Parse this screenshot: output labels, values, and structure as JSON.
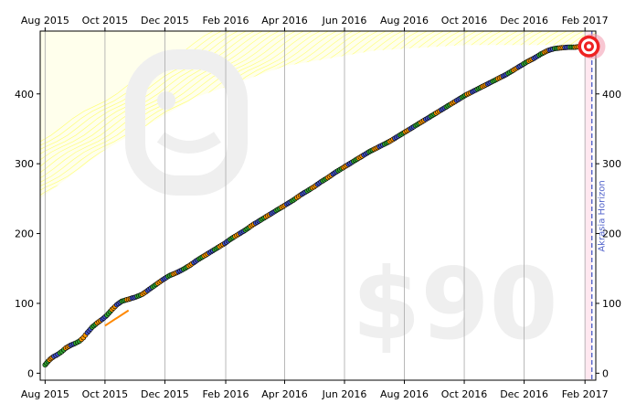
{
  "chart_data": {
    "type": "scatter",
    "title": "",
    "xlabel": "",
    "ylabel": "",
    "x_ticks": [
      "Aug 2015",
      "Oct 2015",
      "Dec 2015",
      "Feb 2016",
      "Apr 2016",
      "Jun 2016",
      "Aug 2016",
      "Oct 2016",
      "Dec 2016",
      "Feb 2017"
    ],
    "y_ticks": [
      0,
      100,
      200,
      300,
      400
    ],
    "ylim": [
      -10,
      490
    ],
    "xlim": [
      "2015-07-27",
      "2017-02-12"
    ],
    "grid": "vertical",
    "watermark": "$90",
    "horizon_label": "Akrasia Horizon",
    "horizon_date": "2017-02-08",
    "goal_date": "2017-02-05",
    "goal_value": 468,
    "road": [
      [
        "2015-07-27",
        250
      ],
      [
        "2015-10-01",
        320
      ],
      [
        "2016-01-01",
        395
      ],
      [
        "2016-04-01",
        440
      ],
      [
        "2016-07-01",
        462
      ],
      [
        "2016-10-01",
        470
      ],
      [
        "2017-02-12",
        470
      ]
    ],
    "orange_segment": [
      [
        "2015-10-01",
        68
      ],
      [
        "2015-10-25",
        90
      ]
    ],
    "datapoints": [
      [
        "2015-08-01",
        12
      ],
      [
        "2015-08-04",
        17
      ],
      [
        "2015-08-07",
        21
      ],
      [
        "2015-08-10",
        24
      ],
      [
        "2015-08-14",
        27
      ],
      [
        "2015-08-18",
        31
      ],
      [
        "2015-08-22",
        36
      ],
      [
        "2015-08-27",
        40
      ],
      [
        "2015-09-01",
        43
      ],
      [
        "2015-09-05",
        46
      ],
      [
        "2015-09-09",
        51
      ],
      [
        "2015-09-13",
        58
      ],
      [
        "2015-09-18",
        66
      ],
      [
        "2015-09-23",
        72
      ],
      [
        "2015-09-28",
        77
      ],
      [
        "2015-10-03",
        83
      ],
      [
        "2015-10-08",
        91
      ],
      [
        "2015-10-13",
        98
      ],
      [
        "2015-10-18",
        103
      ],
      [
        "2015-10-25",
        106
      ],
      [
        "2015-11-01",
        109
      ],
      [
        "2015-11-08",
        113
      ],
      [
        "2015-11-15",
        120
      ],
      [
        "2015-11-22",
        127
      ],
      [
        "2015-11-29",
        134
      ],
      [
        "2015-12-06",
        140
      ],
      [
        "2015-12-13",
        144
      ],
      [
        "2015-12-20",
        149
      ],
      [
        "2015-12-27",
        155
      ],
      [
        "2016-01-03",
        162
      ],
      [
        "2016-01-10",
        168
      ],
      [
        "2016-01-17",
        174
      ],
      [
        "2016-01-24",
        180
      ],
      [
        "2016-01-31",
        186
      ],
      [
        "2016-02-07",
        193
      ],
      [
        "2016-02-14",
        199
      ],
      [
        "2016-02-21",
        205
      ],
      [
        "2016-02-28",
        212
      ],
      [
        "2016-03-06",
        218
      ],
      [
        "2016-03-13",
        224
      ],
      [
        "2016-03-20",
        230
      ],
      [
        "2016-03-27",
        236
      ],
      [
        "2016-04-03",
        242
      ],
      [
        "2016-04-10",
        248
      ],
      [
        "2016-04-17",
        255
      ],
      [
        "2016-04-24",
        261
      ],
      [
        "2016-05-01",
        267
      ],
      [
        "2016-05-08",
        274
      ],
      [
        "2016-05-15",
        280
      ],
      [
        "2016-05-22",
        287
      ],
      [
        "2016-05-29",
        293
      ],
      [
        "2016-06-05",
        299
      ],
      [
        "2016-06-12",
        305
      ],
      [
        "2016-06-19",
        311
      ],
      [
        "2016-06-26",
        317
      ],
      [
        "2016-07-03",
        322
      ],
      [
        "2016-07-10",
        327
      ],
      [
        "2016-07-17",
        332
      ],
      [
        "2016-07-24",
        338
      ],
      [
        "2016-07-31",
        344
      ],
      [
        "2016-08-07",
        350
      ],
      [
        "2016-08-14",
        356
      ],
      [
        "2016-08-21",
        362
      ],
      [
        "2016-08-28",
        368
      ],
      [
        "2016-09-04",
        374
      ],
      [
        "2016-09-11",
        380
      ],
      [
        "2016-09-18",
        386
      ],
      [
        "2016-09-25",
        392
      ],
      [
        "2016-10-02",
        398
      ],
      [
        "2016-10-09",
        403
      ],
      [
        "2016-10-16",
        408
      ],
      [
        "2016-10-23",
        413
      ],
      [
        "2016-10-30",
        418
      ],
      [
        "2016-11-06",
        423
      ],
      [
        "2016-11-13",
        428
      ],
      [
        "2016-11-20",
        434
      ],
      [
        "2016-11-27",
        440
      ],
      [
        "2016-12-04",
        446
      ],
      [
        "2016-12-11",
        451
      ],
      [
        "2016-12-18",
        457
      ],
      [
        "2016-12-25",
        462
      ],
      [
        "2017-01-01",
        465
      ],
      [
        "2017-01-08",
        466
      ],
      [
        "2017-01-15",
        467
      ],
      [
        "2017-01-22",
        467
      ],
      [
        "2017-01-29",
        468
      ]
    ]
  },
  "colors": {
    "road": "#ffff66",
    "line": "#000000",
    "dot_green": "#33aa33",
    "dot_orange": "#ff9900",
    "dot_blue": "#4455cc",
    "grid": "#b0b0b0",
    "horizon": "#5566cc",
    "horizon_fill": "#ffe8f0",
    "watermark": "#efefef",
    "orange_segment": "#ff8800",
    "bullseye": "#ee2222"
  }
}
